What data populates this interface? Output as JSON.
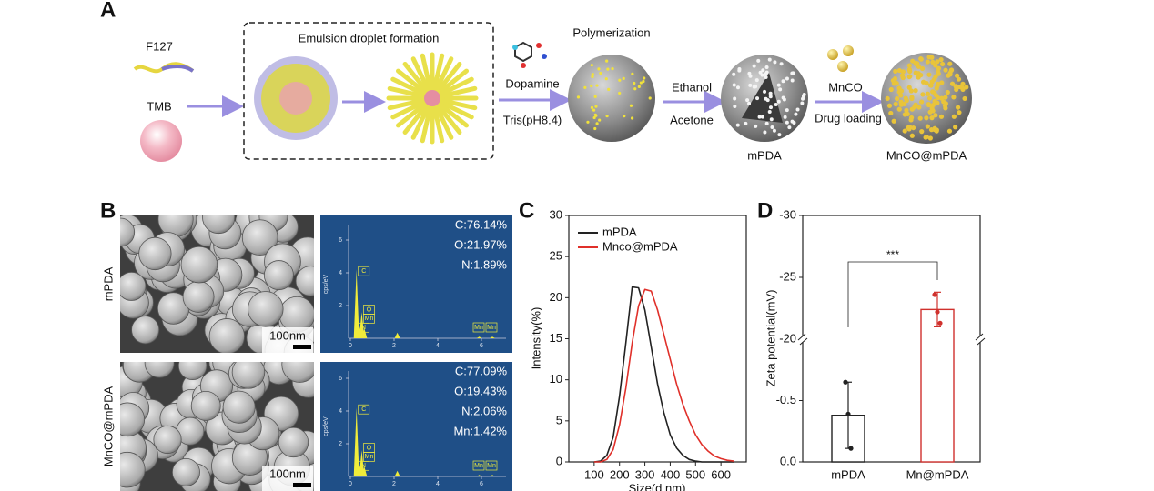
{
  "panel_a": {
    "letter": "A",
    "title": "Emulsion droplet formation",
    "labels": {
      "f127": "F127",
      "tmb": "TMB",
      "polymerization": "Polymerization",
      "dopamine": "Dopamine",
      "tris": "Tris(pH8.4)",
      "ethanol": "Ethanol",
      "acetone": "Acetone",
      "mpda": "mPDA",
      "mnco": "MnCO",
      "drug_loading": "Drug loading",
      "product": "MnCO@mPDA"
    }
  },
  "panel_b": {
    "letter": "B",
    "rows": [
      {
        "label": "mPDA",
        "scale_bar": "100nm",
        "composition": [
          "C:76.14%",
          "O:21.97%",
          "N:1.89%"
        ]
      },
      {
        "label": "MnCO@mPDA",
        "scale_bar": "100nm",
        "composition": [
          "C:77.09%",
          "O:19.43%",
          "N:2.06%",
          "Mn:1.42%"
        ]
      }
    ],
    "eds_axis": {
      "y_label": "cps/eV",
      "xticks": [
        0,
        2,
        4,
        6
      ],
      "yticks": [
        2,
        4,
        6
      ]
    },
    "peak_labels": [
      "C",
      "O",
      "Mn",
      "N",
      "Mn",
      "Mn"
    ]
  },
  "chart_data": [
    {
      "type": "line",
      "letter": "C",
      "x_label": "Size(d.nm)",
      "y_label": "Intensity(%)",
      "x": [
        100,
        125,
        150,
        175,
        200,
        225,
        250,
        275,
        300,
        325,
        350,
        375,
        400,
        425,
        450,
        475,
        500,
        525,
        550,
        575,
        600,
        625,
        650
      ],
      "series": [
        {
          "name": "mPDA",
          "color": "#222222",
          "values": [
            0,
            0.1,
            0.8,
            3,
            8,
            14.5,
            21.3,
            21.2,
            18.5,
            14,
            9.5,
            6,
            3.3,
            1.7,
            0.8,
            0.3,
            0.1,
            0,
            0,
            0,
            0,
            0,
            0
          ]
        },
        {
          "name": "Mnco@mPDA",
          "color": "#e0302a",
          "values": [
            0,
            0,
            0.3,
            1.5,
            4.5,
            9,
            14.5,
            19,
            21,
            20.8,
            18.5,
            15.5,
            12.5,
            9.5,
            7,
            5,
            3.3,
            2.1,
            1.3,
            0.7,
            0.4,
            0.2,
            0.1
          ]
        }
      ],
      "xlim": [
        0,
        700
      ],
      "ylim": [
        0,
        30
      ],
      "xticks": [
        100,
        200,
        300,
        400,
        500,
        600
      ],
      "yticks": [
        0,
        5,
        10,
        15,
        20,
        25,
        30
      ],
      "legend": "upper left"
    },
    {
      "type": "bar",
      "letter": "D",
      "y_label": "Zeta potential(mV)",
      "categories": [
        "mPDA",
        "Mn@mPDA"
      ],
      "values": [
        -0.38,
        -22.4
      ],
      "errors": [
        0.27,
        1.4
      ],
      "points": [
        [
          -0.65,
          -0.39,
          -0.11
        ],
        [
          -23.6,
          -22.2,
          -21.3
        ]
      ],
      "colors": [
        "#222222",
        "#d0312d"
      ],
      "y_segments": [
        {
          "ylim": [
            0,
            -1
          ],
          "yticks": [
            {
              "value": 0,
              "label": "0.0"
            },
            -0.5
          ]
        },
        {
          "ylim": [
            -20,
            -30
          ],
          "yticks": [
            -20,
            -25,
            -30
          ]
        }
      ],
      "annotation": "***"
    }
  ]
}
